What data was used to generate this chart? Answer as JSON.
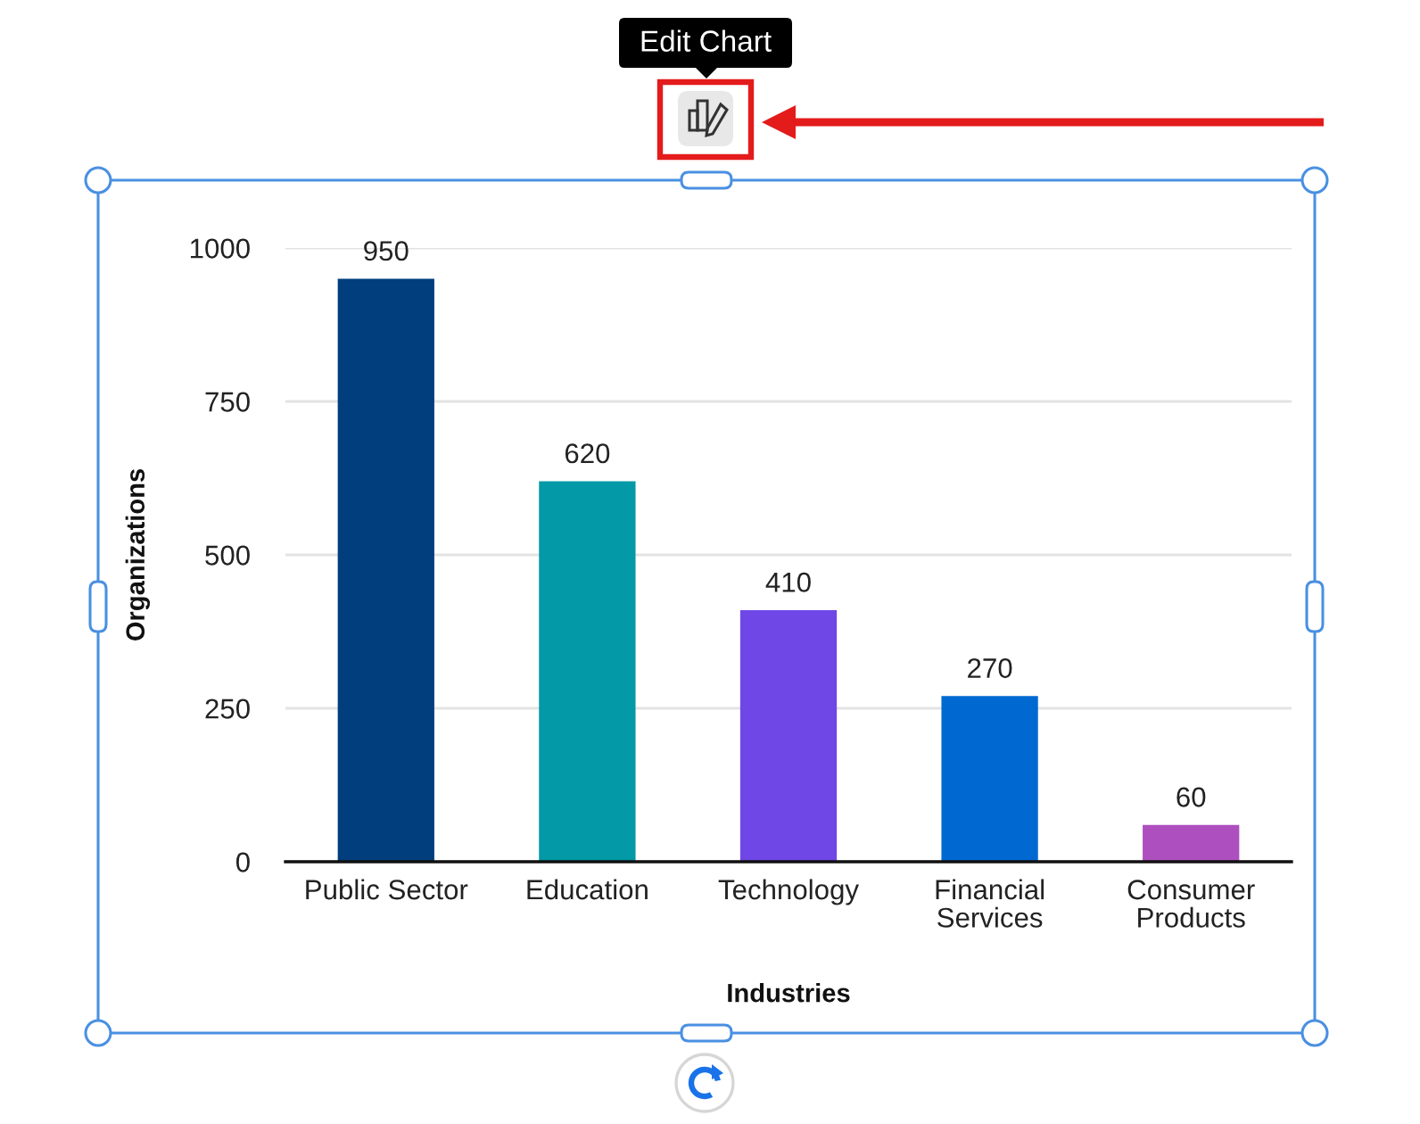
{
  "chart_data": {
    "type": "bar",
    "categories": [
      "Public Sector",
      "Education",
      "Technology",
      "Financial Services",
      "Consumer Products"
    ],
    "values": [
      950,
      620,
      410,
      270,
      60
    ],
    "colors": [
      "#003e7e",
      "#0399a6",
      "#6f47e6",
      "#0069d1",
      "#ae4fbf"
    ],
    "xlabel": "Industries",
    "ylabel": "Organizations",
    "ylim": [
      0,
      1000
    ],
    "yticks": [
      0,
      250,
      500,
      750,
      1000
    ],
    "grid": "y",
    "data_labels": true,
    "annotations": [
      "Edit Chart"
    ]
  }
}
